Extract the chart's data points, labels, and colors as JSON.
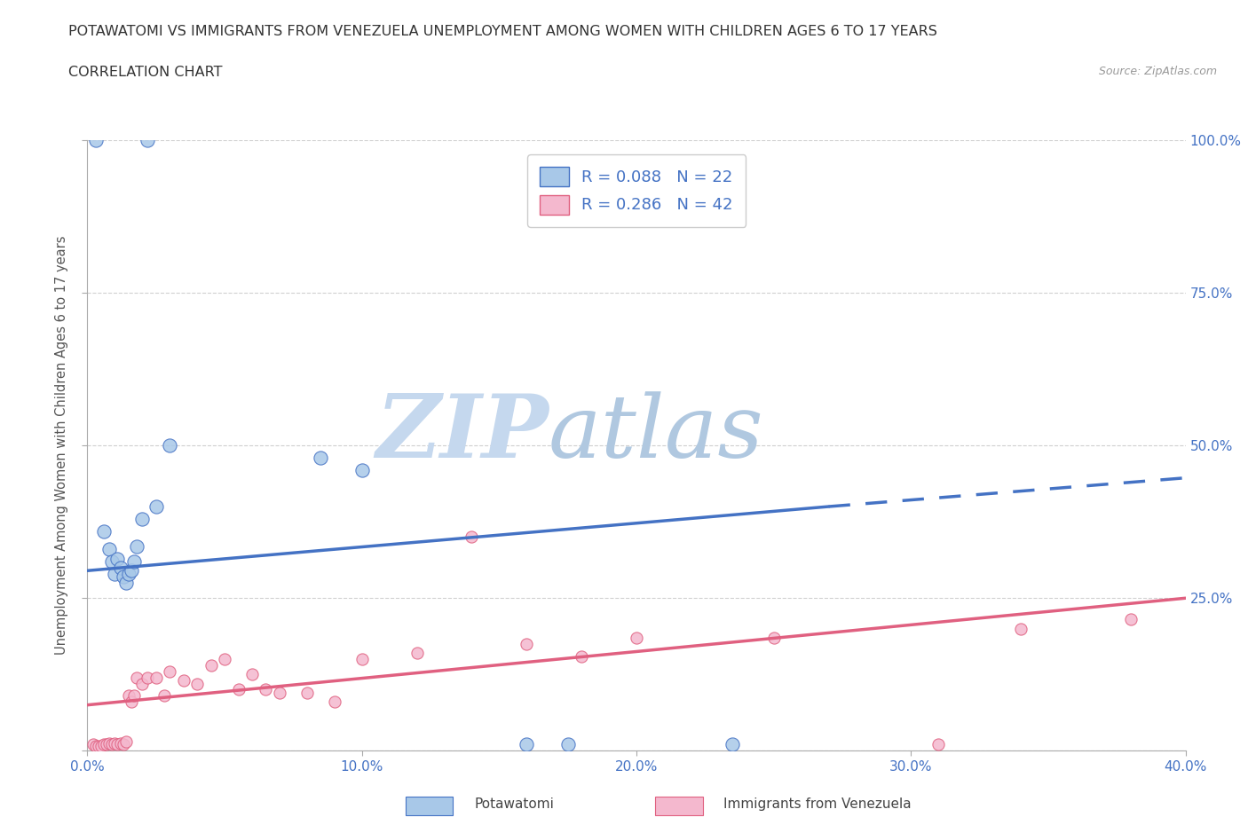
{
  "title_line1": "POTAWATOMI VS IMMIGRANTS FROM VENEZUELA UNEMPLOYMENT AMONG WOMEN WITH CHILDREN AGES 6 TO 17 YEARS",
  "title_line2": "CORRELATION CHART",
  "source": "Source: ZipAtlas.com",
  "ylabel": "Unemployment Among Women with Children Ages 6 to 17 years",
  "xlim": [
    0.0,
    0.4
  ],
  "ylim": [
    0.0,
    1.0
  ],
  "xticks": [
    0.0,
    0.1,
    0.2,
    0.3,
    0.4
  ],
  "yticks": [
    0.0,
    0.25,
    0.5,
    0.75,
    1.0
  ],
  "xtick_labels": [
    "0.0%",
    "10.0%",
    "20.0%",
    "30.0%",
    "40.0%"
  ],
  "ytick_labels_right": [
    "",
    "25.0%",
    "50.0%",
    "75.0%",
    "100.0%"
  ],
  "blue_color": "#a8c8e8",
  "blue_edge": "#4472c4",
  "pink_color": "#f4b8ce",
  "pink_edge": "#e06080",
  "trend_blue": "#4472c4",
  "trend_pink": "#e06080",
  "tick_label_color": "#4472c4",
  "blue_R": 0.088,
  "blue_N": 22,
  "pink_R": 0.286,
  "pink_N": 42,
  "watermark_zip": "ZIP",
  "watermark_atlas": "atlas",
  "legend_label_blue": "Potawatomi",
  "legend_label_pink": "Immigrants from Venezuela",
  "blue_points_x": [
    0.022,
    0.003,
    0.006,
    0.008,
    0.009,
    0.01,
    0.011,
    0.012,
    0.013,
    0.014,
    0.015,
    0.016,
    0.017,
    0.018,
    0.02,
    0.025,
    0.03,
    0.085,
    0.1,
    0.16,
    0.175,
    0.235
  ],
  "blue_points_y": [
    1.0,
    1.0,
    0.36,
    0.33,
    0.31,
    0.29,
    0.315,
    0.3,
    0.285,
    0.275,
    0.29,
    0.295,
    0.31,
    0.335,
    0.38,
    0.4,
    0.5,
    0.48,
    0.46,
    0.01,
    0.01,
    0.01
  ],
  "pink_points_x": [
    0.002,
    0.003,
    0.004,
    0.005,
    0.006,
    0.007,
    0.008,
    0.009,
    0.01,
    0.011,
    0.012,
    0.013,
    0.014,
    0.015,
    0.016,
    0.017,
    0.018,
    0.02,
    0.022,
    0.025,
    0.028,
    0.03,
    0.035,
    0.04,
    0.045,
    0.05,
    0.055,
    0.06,
    0.065,
    0.07,
    0.08,
    0.09,
    0.1,
    0.12,
    0.14,
    0.16,
    0.18,
    0.2,
    0.25,
    0.31,
    0.34,
    0.38
  ],
  "pink_points_y": [
    0.01,
    0.008,
    0.008,
    0.008,
    0.01,
    0.01,
    0.012,
    0.01,
    0.012,
    0.01,
    0.012,
    0.01,
    0.015,
    0.09,
    0.08,
    0.09,
    0.12,
    0.11,
    0.12,
    0.12,
    0.09,
    0.13,
    0.115,
    0.11,
    0.14,
    0.15,
    0.1,
    0.125,
    0.1,
    0.095,
    0.095,
    0.08,
    0.15,
    0.16,
    0.35,
    0.175,
    0.155,
    0.185,
    0.185,
    0.01,
    0.2,
    0.215
  ],
  "blue_trend_x0": 0.0,
  "blue_trend_y0": 0.295,
  "blue_trend_x1": 0.27,
  "blue_trend_y1": 0.4,
  "blue_trend_x2": 0.4,
  "blue_trend_y2": 0.447,
  "pink_trend_x0": 0.0,
  "pink_trend_y0": 0.075,
  "pink_trend_x1": 0.4,
  "pink_trend_y1": 0.25,
  "background_color": "#ffffff",
  "grid_color": "#d0d0d0"
}
